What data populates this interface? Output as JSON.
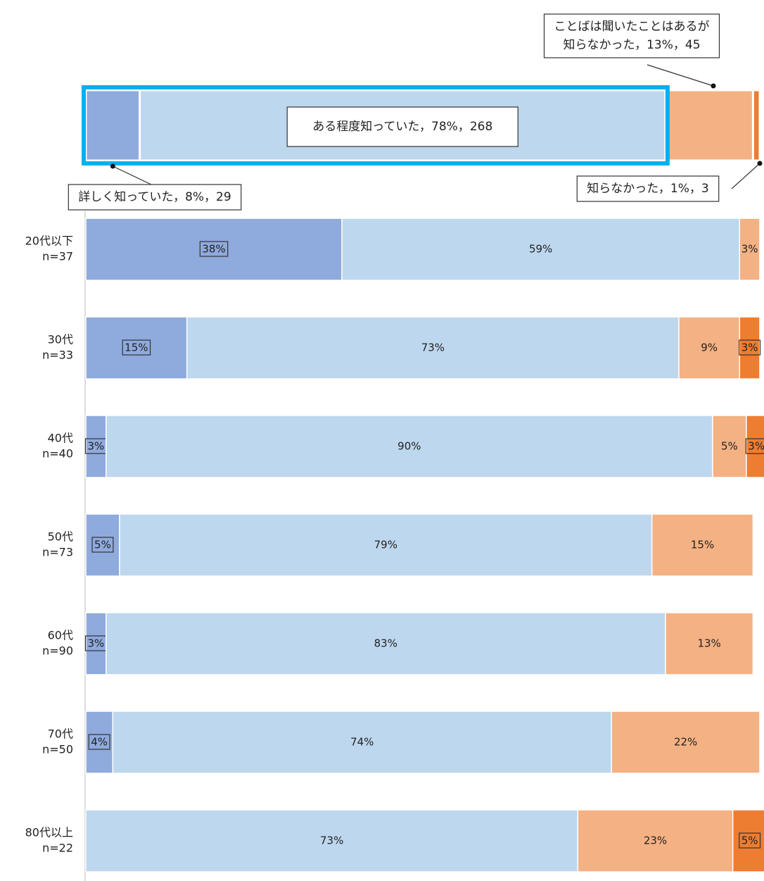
{
  "chart_data": {
    "type": "bar",
    "orientation": "horizontal",
    "stacked": true,
    "xlim": [
      0,
      100
    ],
    "categories": [
      [
        "20代以下",
        "n=37"
      ],
      [
        "30代",
        "n=33"
      ],
      [
        "40代",
        "n=40"
      ],
      [
        "50代",
        "n=73"
      ],
      [
        "60代",
        "n=90"
      ],
      [
        "70代",
        "n=50"
      ],
      [
        "80代以上",
        "n=22"
      ]
    ],
    "series": [
      {
        "color": "#8faadc",
        "values": [
          38,
          15,
          3,
          5,
          3,
          4,
          0
        ],
        "value_labels": [
          "38%",
          "15%",
          "3%",
          "5%",
          "3%",
          "4%",
          null
        ]
      },
      {
        "color": "#bdd7ee",
        "values": [
          59,
          73,
          90,
          79,
          83,
          74,
          73
        ],
        "value_labels": [
          "59%",
          "73%",
          "90%",
          "79%",
          "83%",
          "74%",
          "73%"
        ]
      },
      {
        "color": "#f4b183",
        "values": [
          3,
          9,
          5,
          15,
          13,
          22,
          23
        ],
        "value_labels": [
          "3%",
          "9%",
          "5%",
          "15%",
          "13%",
          "22%",
          "23%"
        ]
      },
      {
        "color": "#ed7d31",
        "values": [
          0,
          3,
          3,
          0,
          0,
          0,
          5
        ],
        "value_labels": [
          null,
          "3%",
          "3%",
          null,
          null,
          null,
          "5%"
        ]
      }
    ],
    "total": {
      "values": [
        8,
        78,
        13,
        1
      ],
      "value_labels": [
        [
          "詳しく知っていた，8%，29"
        ],
        [
          "ある程度知っていた，78%，268"
        ],
        [
          "ことばは聞いたことはあるが",
          "知らなかった，13%，45"
        ],
        [
          "知らなかった，1%，3"
        ]
      ]
    }
  }
}
